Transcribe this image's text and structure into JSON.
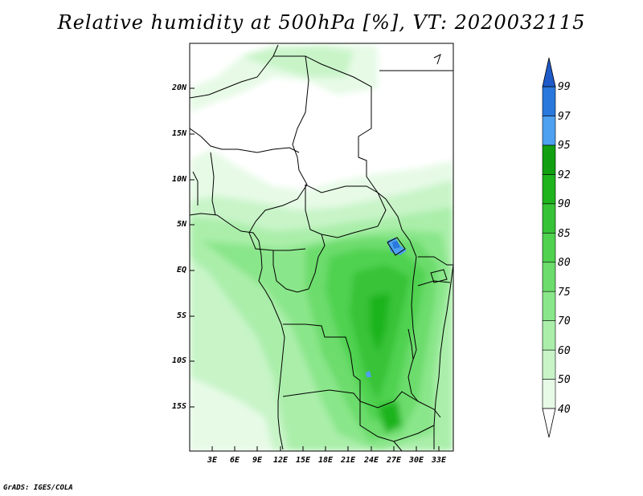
{
  "title": "Relative humidity at 500hPa [%], VT: 2020032115",
  "credit": "GrADS: IGES/COLA",
  "map": {
    "lat_labels": [
      "20N",
      "15N",
      "10N",
      "5N",
      "EQ",
      "5S",
      "10S",
      "15S"
    ],
    "lon_labels": [
      "3E",
      "6E",
      "9E",
      "12E",
      "15E",
      "18E",
      "21E",
      "24E",
      "27E",
      "30E",
      "33E"
    ]
  },
  "colorbar": {
    "levels": [
      "40",
      "50",
      "60",
      "70",
      "75",
      "80",
      "85",
      "90",
      "92",
      "95",
      "97",
      "99"
    ],
    "colors": [
      "#ffffff",
      "#e6fae6",
      "#c8f4c8",
      "#aaeeaa",
      "#8ae68a",
      "#6cdc6c",
      "#50d250",
      "#37c337",
      "#1eb41e",
      "#12a012",
      "#4ea0f0",
      "#2a78dc",
      "#1e5ac8"
    ]
  }
}
